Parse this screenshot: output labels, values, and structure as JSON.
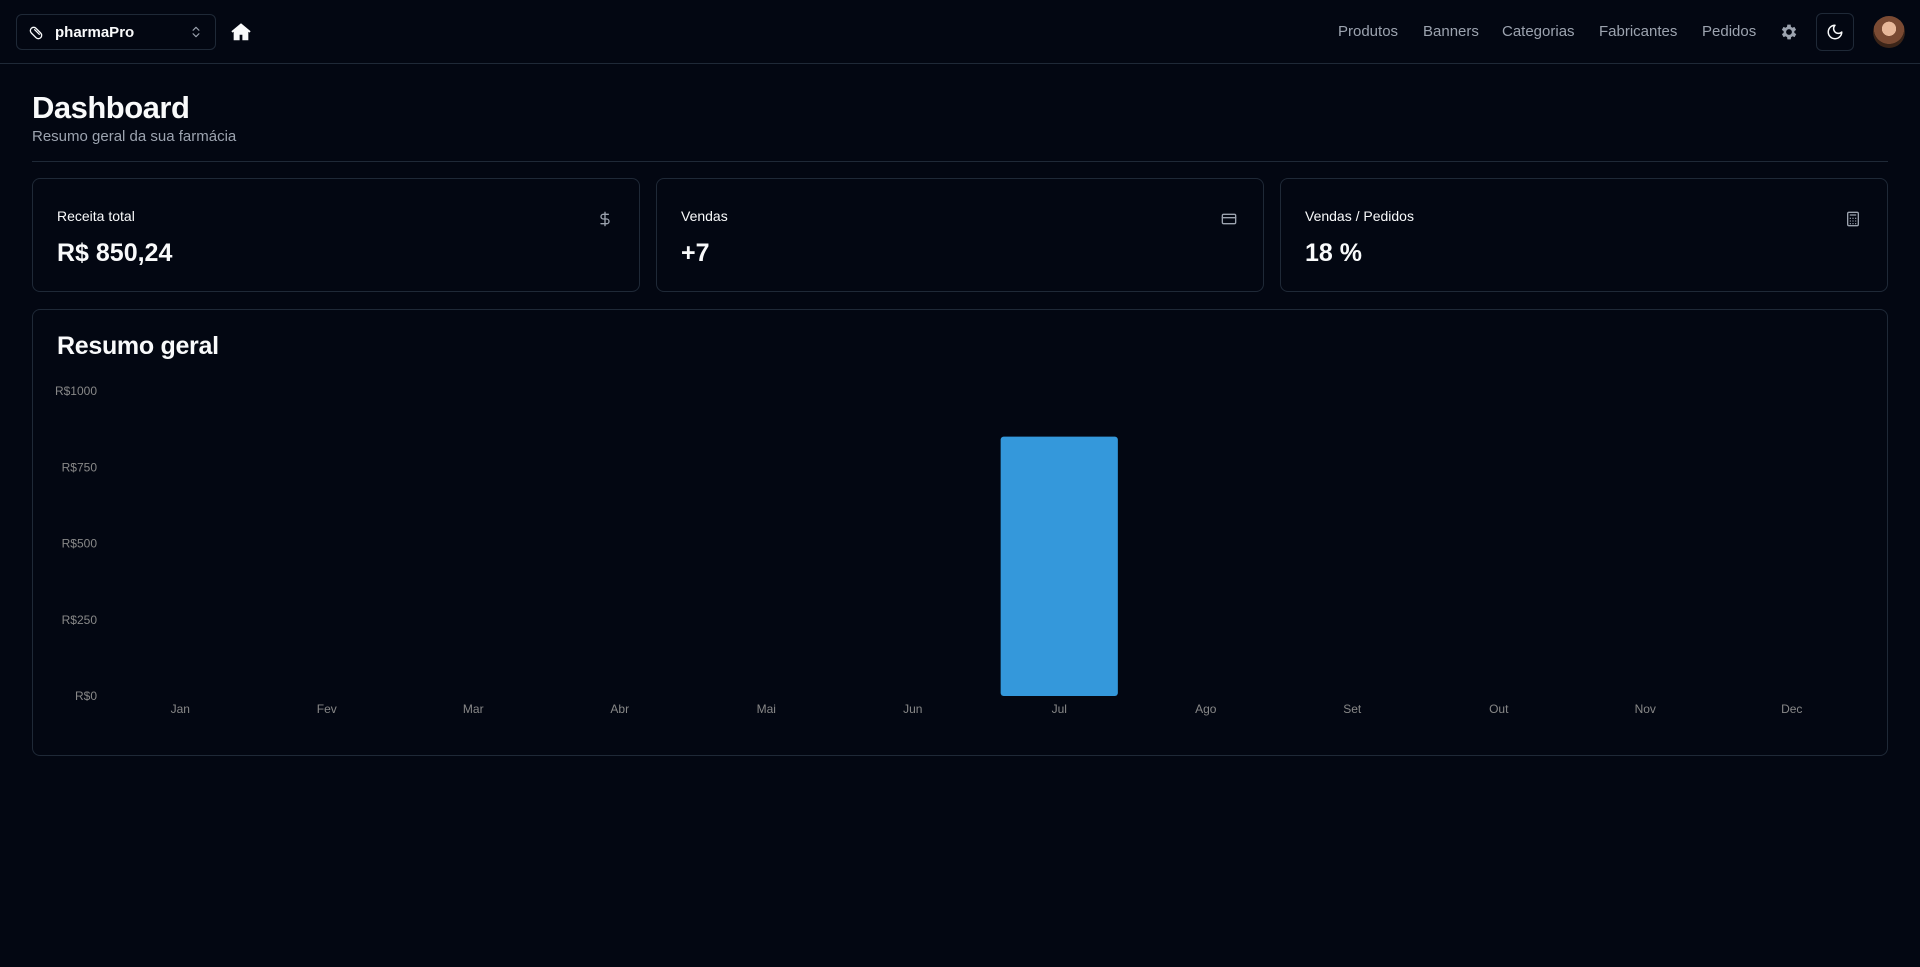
{
  "header": {
    "store_name": "pharmaPro",
    "nav": [
      "Produtos",
      "Banners",
      "Categorias",
      "Fabricantes",
      "Pedidos"
    ]
  },
  "page": {
    "title": "Dashboard",
    "subtitle": "Resumo geral da sua farmácia"
  },
  "cards": [
    {
      "label": "Receita total",
      "value": "R$ 850,24",
      "icon": "dollar-icon"
    },
    {
      "label": "Vendas",
      "value": "+7",
      "icon": "credit-card-icon"
    },
    {
      "label": "Vendas / Pedidos",
      "value": "18 %",
      "icon": "calculator-icon"
    }
  ],
  "chart": {
    "title": "Resumo geral"
  },
  "colors": {
    "bar": "#3498db",
    "background": "#030712",
    "border": "#1f2937"
  },
  "chart_data": {
    "type": "bar",
    "title": "Resumo geral",
    "categories": [
      "Jan",
      "Fev",
      "Mar",
      "Abr",
      "Mai",
      "Jun",
      "Jul",
      "Ago",
      "Set",
      "Out",
      "Nov",
      "Dec"
    ],
    "values": [
      0,
      0,
      0,
      0,
      0,
      0,
      850.24,
      0,
      0,
      0,
      0,
      0
    ],
    "ylim": [
      0,
      1000
    ],
    "yticks": [
      0,
      250,
      500,
      750,
      1000
    ],
    "ytick_labels": [
      "R$0",
      "R$250",
      "R$500",
      "R$750",
      "R$1000"
    ],
    "xlabel": "",
    "ylabel": "",
    "grid": false
  }
}
